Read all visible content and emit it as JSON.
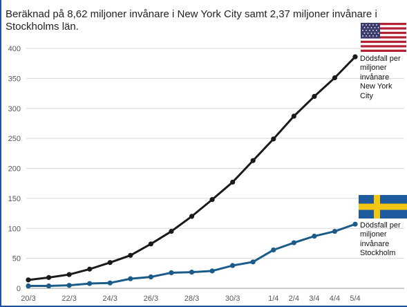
{
  "header": {
    "title": "Beräknad på 8,62 miljoner invånare i New York City samt 2,37 miljoner invånare i Stockholms län."
  },
  "chart_data": {
    "type": "line",
    "title": "Beräknad på 8,62 miljoner invånare i New York City samt 2,37 miljoner invånare i Stockholms län.",
    "xlabel": "",
    "ylabel": "",
    "ylim": [
      0,
      400
    ],
    "yticks": [
      0,
      50,
      100,
      150,
      200,
      250,
      300,
      350,
      400
    ],
    "grid": true,
    "x": [
      "20/3",
      "21/3",
      "22/3",
      "23/3",
      "24/3",
      "25/3",
      "26/3",
      "27/3",
      "28/3",
      "29/3",
      "30/3",
      "31/3",
      "1/4",
      "2/4",
      "3/4",
      "4/4",
      "5/4"
    ],
    "xtick_labels": [
      "20/3",
      "",
      "22/3",
      "",
      "24/3",
      "",
      "26/3",
      "",
      "28/3",
      "",
      "30/3",
      "",
      "1/4",
      "2/4",
      "3/4",
      "4/4",
      "5/4"
    ],
    "series": [
      {
        "name": "Dödsfall per miljoner invånare New York City",
        "color": "#1a1a1a",
        "values": [
          14,
          18,
          23,
          32,
          43,
          55,
          74,
          95,
          120,
          148,
          177,
          213,
          249,
          287,
          320,
          351,
          386
        ]
      },
      {
        "name": "Dödsfall per miljoner invånare Stockholm",
        "color": "#1b5b8a",
        "values": [
          4,
          4,
          5,
          8,
          9,
          16,
          19,
          26,
          27,
          29,
          38,
          44,
          64,
          76,
          87,
          95,
          107
        ]
      }
    ]
  },
  "labels": {
    "nyc": "Dödsfall per miljoner invånare New York City",
    "sthlm": "Dödsfall per miljoner invånare Stockholm"
  },
  "icons": {
    "nyc_flag": "usa-flag-icon",
    "sthlm_flag": "sweden-flag-icon"
  }
}
